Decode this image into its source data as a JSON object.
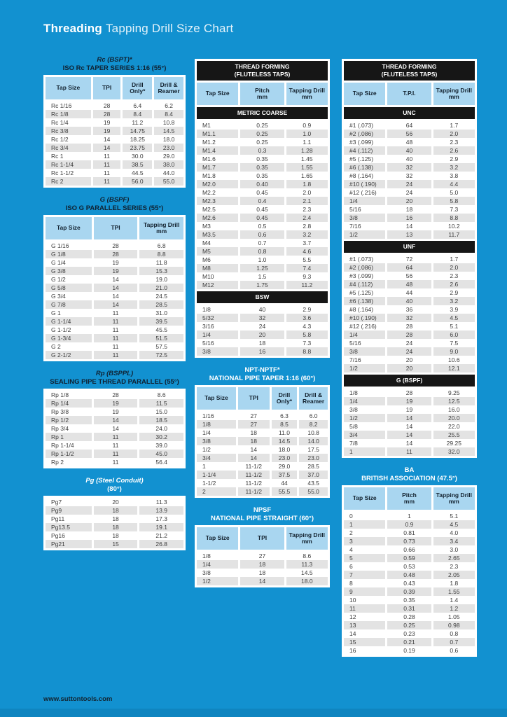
{
  "page": {
    "title_bold": "Threading",
    "title_rest": "Tapping Drill Size Chart",
    "footer": "www.suttontools.com"
  },
  "colors": {
    "background": "#1291D0",
    "table_header_cell": "#A9D6F0",
    "section_bar": "#161616",
    "row_alt": "#E3E3E3",
    "title_dark": "#0F2233",
    "title_light": "#FFFFFF"
  },
  "tables": {
    "rc": {
      "title1": "Rc (BSPT)*",
      "title2": "ISO Rc TAPER SERIES 1:16 (55°)",
      "headers": [
        "Tap Size",
        "TPI",
        "Drill\nOnly*",
        "Drill &\nReamer"
      ],
      "rows": [
        [
          "Rc 1/16",
          "28",
          "6.4",
          "6.2"
        ],
        [
          "Rc 1/8",
          "28",
          "8.4",
          "8.4"
        ],
        [
          "Rc 1/4",
          "19",
          "11.2",
          "10.8"
        ],
        [
          "Rc 3/8",
          "19",
          "14.75",
          "14.5"
        ],
        [
          "Rc 1/2",
          "14",
          "18.25",
          "18.0"
        ],
        [
          "Rc 3/4",
          "14",
          "23.75",
          "23.0"
        ],
        [
          "Rc 1",
          "11",
          "30.0",
          "29.0"
        ],
        [
          "Rc 1-1/4",
          "11",
          "38.5",
          "38.0"
        ],
        [
          "Rc 1-1/2",
          "11",
          "44.5",
          "44.0"
        ],
        [
          "Rc 2",
          "11",
          "56.0",
          "55.0"
        ]
      ]
    },
    "g": {
      "title1": "G (BSPF)",
      "title2": "ISO G PARALLEL SERIES (55°)",
      "headers": [
        "Tap Size",
        "TPI",
        "Tapping Drill\nmm"
      ],
      "rows": [
        [
          "G 1/16",
          "28",
          "6.8"
        ],
        [
          "G 1/8",
          "28",
          "8.8"
        ],
        [
          "G 1/4",
          "19",
          "11.8"
        ],
        [
          "G 3/8",
          "19",
          "15.3"
        ],
        [
          "G 1/2",
          "14",
          "19.0"
        ],
        [
          "G 5/8",
          "14",
          "21.0"
        ],
        [
          "G 3/4",
          "14",
          "24.5"
        ],
        [
          "G 7/8",
          "14",
          "28.5"
        ],
        [
          "G 1",
          "11",
          "31.0"
        ],
        [
          "G 1-1/4",
          "11",
          "39.5"
        ],
        [
          "G 1-1/2",
          "11",
          "45.5"
        ],
        [
          "G 1-3/4",
          "11",
          "51.5"
        ],
        [
          "G 2",
          "11",
          "57.5"
        ],
        [
          "G 2-1/2",
          "11",
          "72.5"
        ]
      ]
    },
    "rp": {
      "title1": "Rp (BSPPL)",
      "title2": "SEALING PIPE THREAD PARALLEL (55°)",
      "rows": [
        [
          "Rp 1/8",
          "28",
          "8.6"
        ],
        [
          "Rp 1/4",
          "19",
          "11.5"
        ],
        [
          "Rp 3/8",
          "19",
          "15.0"
        ],
        [
          "Rp 1/2",
          "14",
          "18.5"
        ],
        [
          "Rp 3/4",
          "14",
          "24.0"
        ],
        [
          "Rp 1",
          "11",
          "30.2"
        ],
        [
          "Rp 1-1/4",
          "11",
          "39.0"
        ],
        [
          "Rp 1-1/2",
          "11",
          "45.0"
        ],
        [
          "Rp 2",
          "11",
          "56.4"
        ]
      ]
    },
    "pg": {
      "title1": "Pg (Steel Conduit)",
      "title2": "(80°)",
      "rows": [
        [
          "Pg7",
          "20",
          "11.3"
        ],
        [
          "Pg9",
          "18",
          "13.9"
        ],
        [
          "Pg11",
          "18",
          "17.3"
        ],
        [
          "Pg13.5",
          "18",
          "19.1"
        ],
        [
          "Pg16",
          "18",
          "21.2"
        ],
        [
          "Pg21",
          "15",
          "26.8"
        ]
      ]
    },
    "tf_metric": {
      "bar": "THREAD FORMING\n(FLUTELESS TAPS)",
      "headers": [
        "Tap Size",
        "Pitch\nmm",
        "Tapping Drill\nmm"
      ],
      "sections": [
        {
          "name": "METRIC COARSE",
          "rows": [
            [
              "M1",
              "0.25",
              "0.9"
            ],
            [
              "M1.1",
              "0.25",
              "1.0"
            ],
            [
              "M1.2",
              "0.25",
              "1.1"
            ],
            [
              "M1.4",
              "0.3",
              "1.28"
            ],
            [
              "M1.6",
              "0.35",
              "1.45"
            ],
            [
              "M1.7",
              "0.35",
              "1.55"
            ],
            [
              "M1.8",
              "0.35",
              "1.65"
            ],
            [
              "M2.0",
              "0.40",
              "1.8"
            ],
            [
              "M2.2",
              "0.45",
              "2.0"
            ],
            [
              "M2.3",
              "0.4",
              "2.1"
            ],
            [
              "M2.5",
              "0.45",
              "2.3"
            ],
            [
              "M2.6",
              "0.45",
              "2.4"
            ],
            [
              "M3",
              "0.5",
              "2.8"
            ],
            [
              "M3.5",
              "0.6",
              "3.2"
            ],
            [
              "M4",
              "0.7",
              "3.7"
            ],
            [
              "M5",
              "0.8",
              "4.6"
            ],
            [
              "M6",
              "1.0",
              "5.5"
            ],
            [
              "M8",
              "1.25",
              "7.4"
            ],
            [
              "M10",
              "1.5",
              "9.3"
            ],
            [
              "M12",
              "1.75",
              "11.2"
            ]
          ]
        },
        {
          "name": "BSW",
          "rows": [
            [
              "1/8",
              "40",
              "2.9"
            ],
            [
              "5/32",
              "32",
              "3.6"
            ],
            [
              "3/16",
              "24",
              "4.3"
            ],
            [
              "1/4",
              "20",
              "5.8"
            ],
            [
              "5/16",
              "18",
              "7.3"
            ],
            [
              "3/8",
              "16",
              "8.8"
            ]
          ]
        }
      ]
    },
    "npt": {
      "title1": "NPT-NPTF*",
      "title2": "NATIONAL PIPE TAPER 1:16 (60°)",
      "headers": [
        "Tap Size",
        "TPI",
        "Drill\nOnly*",
        "Drill &\nReamer"
      ],
      "rows": [
        [
          "1/16",
          "27",
          "6.3",
          "6.0"
        ],
        [
          "1/8",
          "27",
          "8.5",
          "8.2"
        ],
        [
          "1/4",
          "18",
          "11.0",
          "10.8"
        ],
        [
          "3/8",
          "18",
          "14.5",
          "14.0"
        ],
        [
          "1/2",
          "14",
          "18.0",
          "17.5"
        ],
        [
          "3/4",
          "14",
          "23.0",
          "23.0"
        ],
        [
          "1",
          "11-1/2",
          "29.0",
          "28.5"
        ],
        [
          "1-1/4",
          "11-1/2",
          "37.5",
          "37.0"
        ],
        [
          "1-1/2",
          "11-1/2",
          "44",
          "43.5"
        ],
        [
          "2",
          "11-1/2",
          "55.5",
          "55.0"
        ]
      ]
    },
    "npsf": {
      "title1": "NPSF",
      "title2": "NATIONAL PIPE STRAIGHT (60°)",
      "headers": [
        "Tap Size",
        "TPI",
        "Tapping Drill\nmm"
      ],
      "rows": [
        [
          "1/8",
          "27",
          "8.6"
        ],
        [
          "1/4",
          "18",
          "11.3"
        ],
        [
          "3/8",
          "18",
          "14.5"
        ],
        [
          "1/2",
          "14",
          "18.0"
        ]
      ]
    },
    "tf_unified": {
      "bar": "THREAD FORMING\n(FLUTELESS TAPS)",
      "headers": [
        "Tap Size",
        "T.P.I.",
        "Tapping Drill\nmm"
      ],
      "sections": [
        {
          "name": "UNC",
          "rows": [
            [
              "#1 (.073)",
              "64",
              "1.7"
            ],
            [
              "#2 (.086)",
              "56",
              "2.0"
            ],
            [
              "#3 (.099)",
              "48",
              "2.3"
            ],
            [
              "#4 (.112)",
              "40",
              "2.6"
            ],
            [
              "#5 (.125)",
              "40",
              "2.9"
            ],
            [
              "#6 (.138)",
              "32",
              "3.2"
            ],
            [
              "#8 (.164)",
              "32",
              "3.8"
            ],
            [
              "#10 (.190)",
              "24",
              "4.4"
            ],
            [
              "#12 (.216)",
              "24",
              "5.0"
            ],
            [
              "1/4",
              "20",
              "5.8"
            ],
            [
              "5/16",
              "18",
              "7.3"
            ],
            [
              "3/8",
              "16",
              "8.8"
            ],
            [
              "7/16",
              "14",
              "10.2"
            ],
            [
              "1/2",
              "13",
              "11.7"
            ]
          ]
        },
        {
          "name": "UNF",
          "rows": [
            [
              "#1 (.073)",
              "72",
              "1.7"
            ],
            [
              "#2 (.086)",
              "64",
              "2.0"
            ],
            [
              "#3 (.099)",
              "56",
              "2.3"
            ],
            [
              "#4 (.112)",
              "48",
              "2.6"
            ],
            [
              "#5 (.125)",
              "44",
              "2.9"
            ],
            [
              "#6 (.138)",
              "40",
              "3.2"
            ],
            [
              "#8 (.164)",
              "36",
              "3.9"
            ],
            [
              "#10 (.190)",
              "32",
              "4.5"
            ],
            [
              "#12 (.216)",
              "28",
              "5.1"
            ],
            [
              "1/4",
              "28",
              "6.0"
            ],
            [
              "5/16",
              "24",
              "7.5"
            ],
            [
              "3/8",
              "24",
              "9.0"
            ],
            [
              "7/16",
              "20",
              "10.6"
            ],
            [
              "1/2",
              "20",
              "12.1"
            ]
          ]
        },
        {
          "name": "G (BSPF)",
          "rows": [
            [
              "1/8",
              "28",
              "9.25"
            ],
            [
              "1/4",
              "19",
              "12.5"
            ],
            [
              "3/8",
              "19",
              "16.0"
            ],
            [
              "1/2",
              "14",
              "20.0"
            ],
            [
              "5/8",
              "14",
              "22.0"
            ],
            [
              "3/4",
              "14",
              "25.5"
            ],
            [
              "7/8",
              "14",
              "29.25"
            ],
            [
              "1",
              "11",
              "32.0"
            ]
          ]
        }
      ]
    },
    "ba": {
      "title1": "BA",
      "title2": "BRITISH ASSOCIATION (47.5°)",
      "headers": [
        "Tap Size",
        "Pitch\nmm",
        "Tapping Drill\nmm"
      ],
      "rows": [
        [
          "0",
          "1",
          "5.1"
        ],
        [
          "1",
          "0.9",
          "4.5"
        ],
        [
          "2",
          "0.81",
          "4.0"
        ],
        [
          "3",
          "0.73",
          "3.4"
        ],
        [
          "4",
          "0.66",
          "3.0"
        ],
        [
          "5",
          "0.59",
          "2.65"
        ],
        [
          "6",
          "0.53",
          "2.3"
        ],
        [
          "7",
          "0.48",
          "2.05"
        ],
        [
          "8",
          "0.43",
          "1.8"
        ],
        [
          "9",
          "0.39",
          "1.55"
        ],
        [
          "10",
          "0.35",
          "1.4"
        ],
        [
          "11",
          "0.31",
          "1.2"
        ],
        [
          "12",
          "0.28",
          "1.05"
        ],
        [
          "13",
          "0.25",
          "0.98"
        ],
        [
          "14",
          "0.23",
          "0.8"
        ],
        [
          "15",
          "0.21",
          "0.7"
        ],
        [
          "16",
          "0.19",
          "0.6"
        ]
      ]
    }
  }
}
